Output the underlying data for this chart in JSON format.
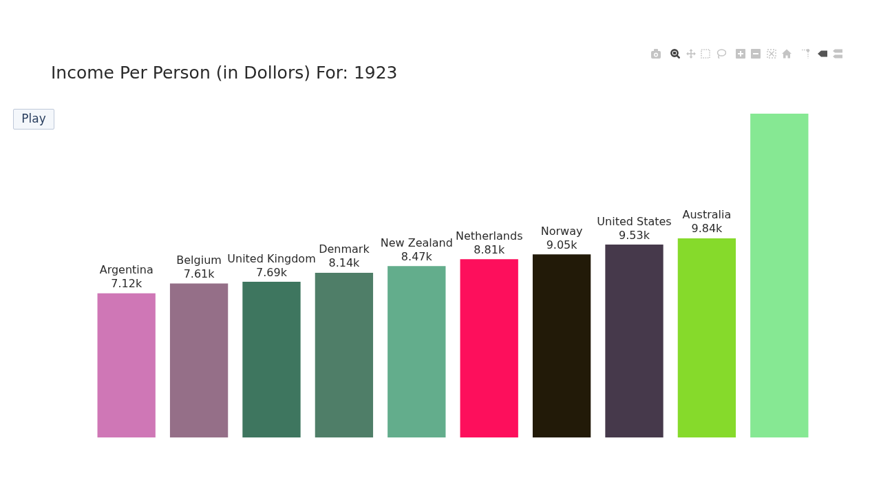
{
  "chart_data": {
    "type": "bar",
    "title": "Income Per Person (in Dollors) For: 1923",
    "categories": [
      "Argentina",
      "Belgium",
      "United Kingdom",
      "Denmark",
      "New Zealand",
      "Netherlands",
      "Norway",
      "United States",
      "Australia",
      null
    ],
    "values": [
      7120,
      7610,
      7690,
      8140,
      8470,
      8810,
      9050,
      9530,
      9840,
      16000
    ],
    "colors": [
      "#cf77b6",
      "#956f88",
      "#3e765f",
      "#4f7e68",
      "#63ad8c",
      "#fd0f5c",
      "#221a08",
      "#46394b",
      "#86da2b",
      "#86e893"
    ],
    "value_labels": [
      "7.12k",
      "7.61k",
      "7.69k",
      "8.14k",
      "8.47k",
      "8.81k",
      "9.05k",
      "9.53k",
      "9.84k",
      null
    ],
    "annotations": [
      "Play"
    ],
    "tick_labels": false
  }
}
